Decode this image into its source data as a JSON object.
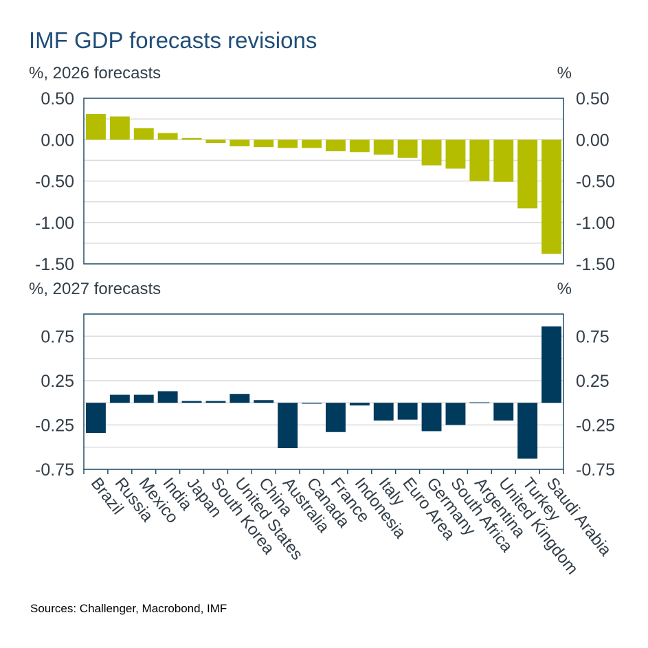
{
  "title": "IMF GDP forecasts revisions",
  "source": "Sources: Challenger, Macrobond, IMF",
  "chart_data": [
    {
      "type": "bar",
      "subtitle": "%, 2026 forecasts",
      "right_unit": "%",
      "color": "#b5bd00",
      "categories": [
        "Brazil",
        "Russia",
        "Mexico",
        "India",
        "Japan",
        "South Korea",
        "United States",
        "China",
        "Australia",
        "Canada",
        "France",
        "Indonesia",
        "Italy",
        "Euro Area",
        "Germany",
        "South Africa",
        "Argentina",
        "United Kingdom",
        "Turkey",
        "Saudi Arabia"
      ],
      "values": [
        0.31,
        0.28,
        0.14,
        0.08,
        0.02,
        -0.04,
        -0.08,
        -0.09,
        -0.1,
        -0.1,
        -0.14,
        -0.15,
        -0.18,
        -0.22,
        -0.31,
        -0.35,
        -0.5,
        -0.51,
        -0.83,
        -1.38
      ],
      "ylim": [
        -1.5,
        0.5
      ],
      "ticks": [
        "0.50",
        "0.00",
        "-0.50",
        "-1.00",
        "-1.50"
      ],
      "tick_values": [
        0.5,
        0,
        -0.5,
        -1.0,
        -1.5
      ],
      "grid_step": 0.25,
      "grid": true
    },
    {
      "type": "bar",
      "subtitle": "%, 2027 forecasts",
      "right_unit": "%",
      "color": "#003a5d",
      "categories": [
        "Brazil",
        "Russia",
        "Mexico",
        "India",
        "Japan",
        "South Korea",
        "United States",
        "China",
        "Australia",
        "Canada",
        "France",
        "Indonesia",
        "Italy",
        "Euro Area",
        "Germany",
        "South Africa",
        "Argentina",
        "United Kingdom",
        "Turkey",
        "Saudi Arabia"
      ],
      "values": [
        -0.34,
        0.09,
        0.09,
        0.13,
        0.02,
        0.02,
        0.1,
        0.03,
        -0.51,
        -0.01,
        -0.33,
        -0.03,
        -0.2,
        -0.19,
        -0.32,
        -0.25,
        0.005,
        -0.2,
        -0.63,
        0.86
      ],
      "ylim": [
        -0.75,
        1.0
      ],
      "ticks": [
        "0.75",
        "0.25",
        "-0.25",
        "-0.75"
      ],
      "tick_values": [
        0.75,
        0.25,
        -0.25,
        -0.75
      ],
      "grid_step": 0.25,
      "grid": true
    }
  ]
}
